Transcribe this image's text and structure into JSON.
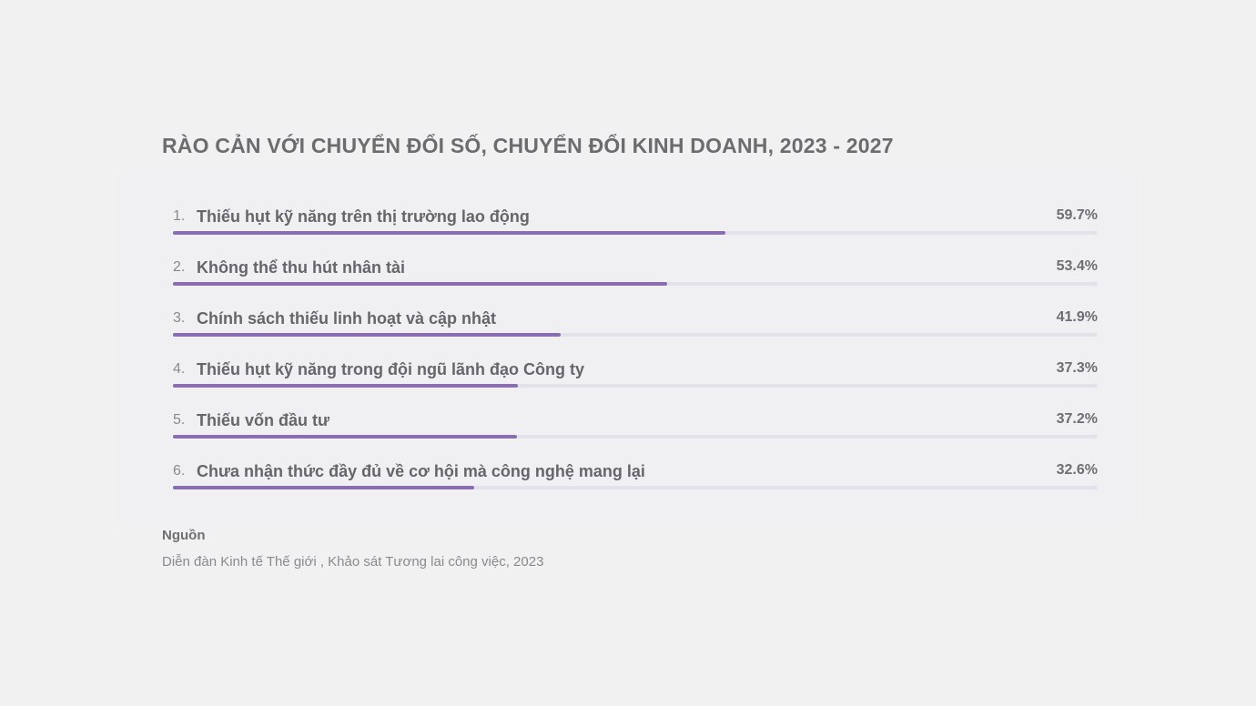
{
  "chart_data": {
    "type": "bar",
    "title": "RÀO CẢN VỚI CHUYỂN ĐỔI SỐ, CHUYỂN ĐỔI KINH DOANH, 2023 - 2027",
    "orientation": "horizontal",
    "xlim": [
      0,
      100
    ],
    "items": [
      {
        "rank": "1.",
        "label": "Thiếu hụt kỹ năng trên thị trường lao động",
        "value": 59.7,
        "value_text": "59.7%"
      },
      {
        "rank": "2.",
        "label": "Không thể thu hút nhân tài",
        "value": 53.4,
        "value_text": "53.4%"
      },
      {
        "rank": "3.",
        "label": "Chính sách thiếu linh hoạt và cập nhật",
        "value": 41.9,
        "value_text": "41.9%"
      },
      {
        "rank": "4.",
        "label": "Thiếu hụt kỹ năng trong đội ngũ lãnh đạo Công ty",
        "value": 37.3,
        "value_text": "37.3%"
      },
      {
        "rank": "5.",
        "label": "Thiếu vốn đầu tư",
        "value": 37.2,
        "value_text": "37.2%"
      },
      {
        "rank": "6.",
        "label": "Chưa nhận thức đầy đủ về cơ hội mà công nghệ mang lại",
        "value": 32.6,
        "value_text": "32.6%"
      }
    ],
    "colors": {
      "bar": "#8a6cb0",
      "track": "#e3e2ea"
    }
  },
  "source": {
    "heading": "Nguồn",
    "text": "Diễn đàn Kinh tế Thế giới , Khảo sát Tương lai công việc, 2023"
  }
}
